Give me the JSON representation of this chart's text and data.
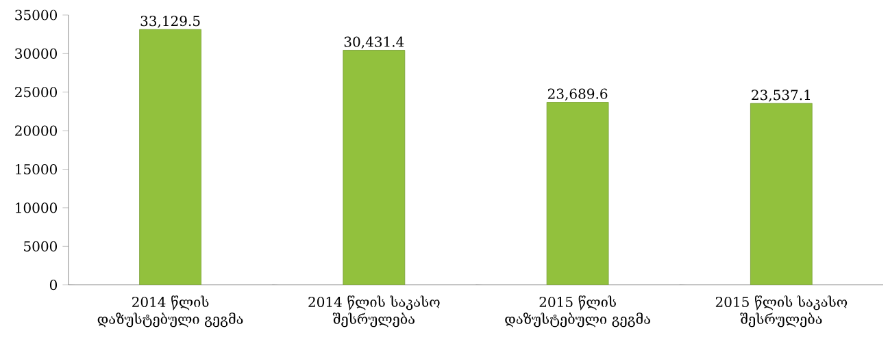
{
  "chart_data": {
    "type": "bar",
    "categories": [
      "2014 წლის დაზუსტებული გეგმა",
      "2014 წლის საკასო შესრულება",
      "2015 წლის დაზუსტებული გეგმა",
      "2015 წლის საკასო შესრულება"
    ],
    "values": [
      33129.5,
      30431.4,
      23689.6,
      23537.1
    ],
    "value_labels": [
      "33,129.5",
      "30,431.4",
      "23,689.6",
      "23,537.1"
    ],
    "color": "#92c13d",
    "ylim": [
      0,
      35000
    ],
    "yticks": [
      0,
      5000,
      10000,
      15000,
      20000,
      25000,
      30000,
      35000
    ],
    "grid": false
  }
}
